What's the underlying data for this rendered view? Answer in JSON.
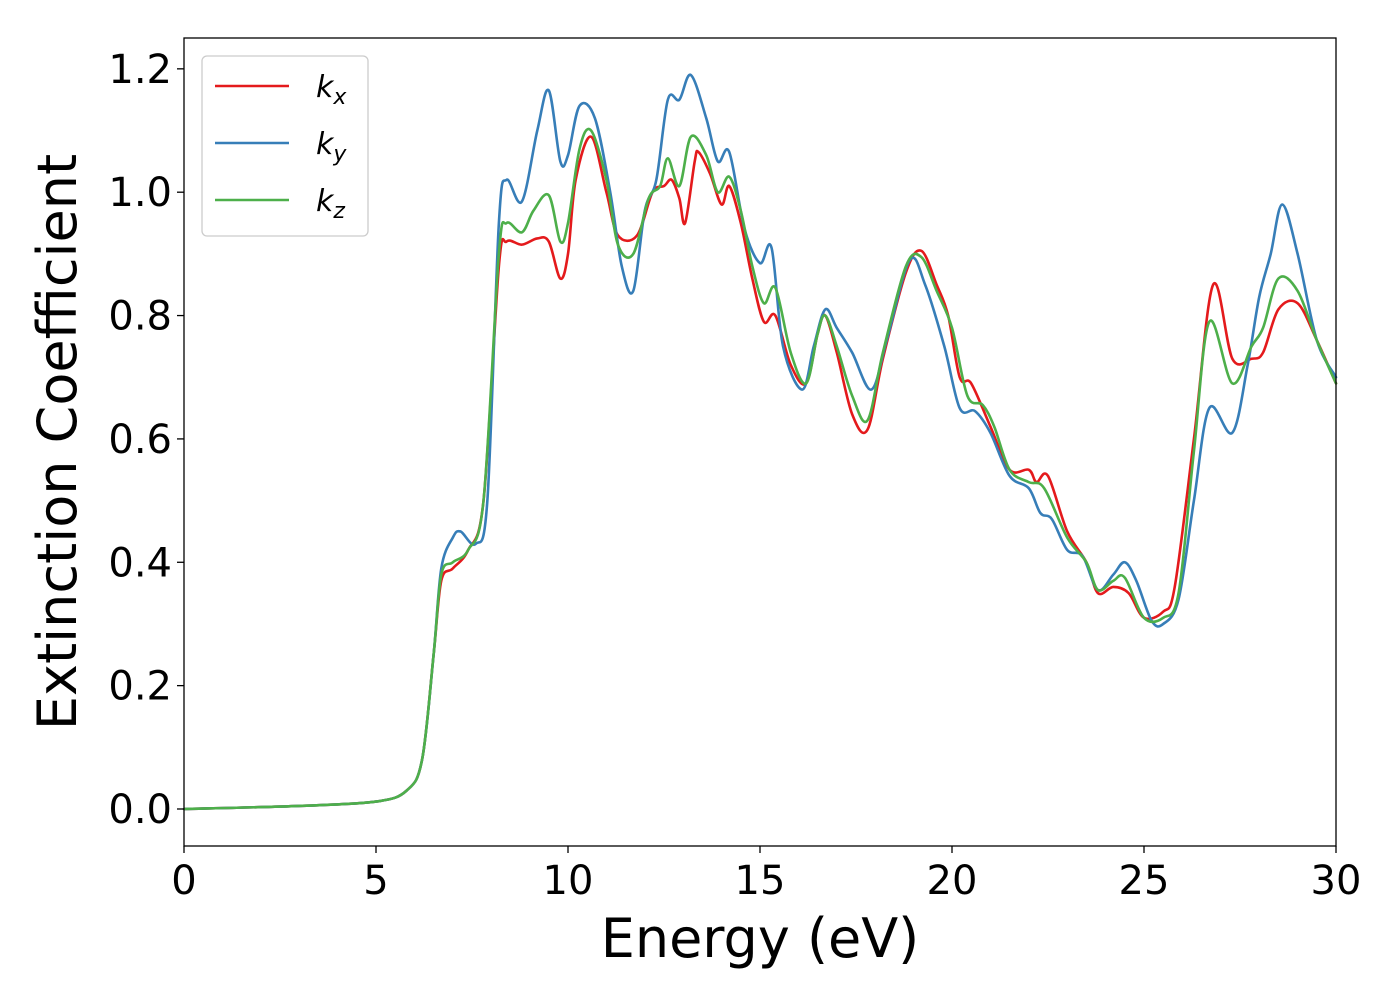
{
  "chart_data": {
    "type": "line",
    "xlabel": "Energy (eV)",
    "ylabel": "Extinction Coefficient",
    "xlim": [
      0,
      30
    ],
    "ylim": [
      -0.06,
      1.25
    ],
    "x_ticks": [
      {
        "value": 0,
        "label": "0"
      },
      {
        "value": 5,
        "label": "5"
      },
      {
        "value": 10,
        "label": "10"
      },
      {
        "value": 15,
        "label": "15"
      },
      {
        "value": 20,
        "label": "20"
      },
      {
        "value": 25,
        "label": "25"
      },
      {
        "value": 30,
        "label": "30"
      }
    ],
    "y_ticks": [
      {
        "value": 0.0,
        "label": "0.0"
      },
      {
        "value": 0.2,
        "label": "0.2"
      },
      {
        "value": 0.4,
        "label": "0.4"
      },
      {
        "value": 0.6,
        "label": "0.6"
      },
      {
        "value": 0.8,
        "label": "0.8"
      },
      {
        "value": 1.0,
        "label": "1.0"
      },
      {
        "value": 1.2,
        "label": "1.2"
      }
    ],
    "grid": false,
    "legend_position": "top-left",
    "series": [
      {
        "name": "k",
        "subscript": "x",
        "color": "#e41a1c",
        "points": [
          [
            0,
            0.0
          ],
          [
            3,
            0.005
          ],
          [
            5,
            0.012
          ],
          [
            5.8,
            0.03
          ],
          [
            6.2,
            0.08
          ],
          [
            6.5,
            0.25
          ],
          [
            6.7,
            0.37
          ],
          [
            7.0,
            0.39
          ],
          [
            7.4,
            0.42
          ],
          [
            7.8,
            0.5
          ],
          [
            8.2,
            0.88
          ],
          [
            8.4,
            0.92
          ],
          [
            8.8,
            0.915
          ],
          [
            9.2,
            0.925
          ],
          [
            9.5,
            0.92
          ],
          [
            9.8,
            0.86
          ],
          [
            10.0,
            0.9
          ],
          [
            10.2,
            1.02
          ],
          [
            10.6,
            1.09
          ],
          [
            11.0,
            1.0
          ],
          [
            11.3,
            0.93
          ],
          [
            11.8,
            0.93
          ],
          [
            12.2,
            1.0
          ],
          [
            12.5,
            1.01
          ],
          [
            12.7,
            1.02
          ],
          [
            12.9,
            0.99
          ],
          [
            13.05,
            0.95
          ],
          [
            13.3,
            1.05
          ],
          [
            13.4,
            1.065
          ],
          [
            13.7,
            1.03
          ],
          [
            14.0,
            0.98
          ],
          [
            14.2,
            1.01
          ],
          [
            14.5,
            0.95
          ],
          [
            14.8,
            0.86
          ],
          [
            15.1,
            0.79
          ],
          [
            15.4,
            0.8
          ],
          [
            15.8,
            0.72
          ],
          [
            16.2,
            0.69
          ],
          [
            16.5,
            0.77
          ],
          [
            16.7,
            0.8
          ],
          [
            17.0,
            0.74
          ],
          [
            17.4,
            0.64
          ],
          [
            17.8,
            0.615
          ],
          [
            18.2,
            0.73
          ],
          [
            18.8,
            0.87
          ],
          [
            19.2,
            0.905
          ],
          [
            19.6,
            0.85
          ],
          [
            19.9,
            0.8
          ],
          [
            20.2,
            0.7
          ],
          [
            20.5,
            0.69
          ],
          [
            21.0,
            0.62
          ],
          [
            21.5,
            0.55
          ],
          [
            22.0,
            0.55
          ],
          [
            22.2,
            0.53
          ],
          [
            22.5,
            0.54
          ],
          [
            23.0,
            0.45
          ],
          [
            23.5,
            0.4
          ],
          [
            23.8,
            0.35
          ],
          [
            24.2,
            0.36
          ],
          [
            24.6,
            0.35
          ],
          [
            25.0,
            0.31
          ],
          [
            25.5,
            0.32
          ],
          [
            25.8,
            0.36
          ],
          [
            26.3,
            0.6
          ],
          [
            26.8,
            0.85
          ],
          [
            27.3,
            0.73
          ],
          [
            27.8,
            0.73
          ],
          [
            28.1,
            0.74
          ],
          [
            28.5,
            0.81
          ],
          [
            29.0,
            0.82
          ],
          [
            29.5,
            0.76
          ],
          [
            30.0,
            0.69
          ]
        ]
      },
      {
        "name": "k",
        "subscript": "y",
        "color": "#377eb8",
        "points": [
          [
            0,
            0.0
          ],
          [
            3,
            0.005
          ],
          [
            5,
            0.012
          ],
          [
            5.8,
            0.03
          ],
          [
            6.2,
            0.08
          ],
          [
            6.5,
            0.25
          ],
          [
            6.7,
            0.39
          ],
          [
            7.0,
            0.44
          ],
          [
            7.2,
            0.45
          ],
          [
            7.6,
            0.43
          ],
          [
            7.9,
            0.5
          ],
          [
            8.2,
            0.95
          ],
          [
            8.4,
            1.02
          ],
          [
            8.8,
            0.985
          ],
          [
            9.2,
            1.1
          ],
          [
            9.5,
            1.165
          ],
          [
            9.8,
            1.05
          ],
          [
            10.0,
            1.06
          ],
          [
            10.3,
            1.14
          ],
          [
            10.7,
            1.12
          ],
          [
            11.1,
            1.0
          ],
          [
            11.4,
            0.88
          ],
          [
            11.7,
            0.84
          ],
          [
            12.0,
            0.97
          ],
          [
            12.3,
            1.02
          ],
          [
            12.6,
            1.15
          ],
          [
            12.9,
            1.15
          ],
          [
            13.2,
            1.19
          ],
          [
            13.6,
            1.12
          ],
          [
            13.9,
            1.05
          ],
          [
            14.2,
            1.065
          ],
          [
            14.6,
            0.94
          ],
          [
            15.0,
            0.885
          ],
          [
            15.3,
            0.91
          ],
          [
            15.6,
            0.75
          ],
          [
            16.1,
            0.68
          ],
          [
            16.4,
            0.75
          ],
          [
            16.7,
            0.81
          ],
          [
            17.0,
            0.78
          ],
          [
            17.4,
            0.74
          ],
          [
            17.9,
            0.68
          ],
          [
            18.3,
            0.76
          ],
          [
            18.9,
            0.89
          ],
          [
            19.3,
            0.85
          ],
          [
            19.8,
            0.75
          ],
          [
            20.2,
            0.65
          ],
          [
            20.6,
            0.645
          ],
          [
            21.0,
            0.61
          ],
          [
            21.5,
            0.54
          ],
          [
            22.0,
            0.52
          ],
          [
            22.3,
            0.48
          ],
          [
            22.6,
            0.47
          ],
          [
            23.0,
            0.42
          ],
          [
            23.4,
            0.41
          ],
          [
            23.8,
            0.355
          ],
          [
            24.2,
            0.38
          ],
          [
            24.5,
            0.4
          ],
          [
            24.8,
            0.37
          ],
          [
            25.2,
            0.305
          ],
          [
            25.5,
            0.3
          ],
          [
            25.9,
            0.34
          ],
          [
            26.3,
            0.5
          ],
          [
            26.7,
            0.65
          ],
          [
            27.3,
            0.61
          ],
          [
            27.7,
            0.72
          ],
          [
            28.0,
            0.83
          ],
          [
            28.3,
            0.9
          ],
          [
            28.6,
            0.98
          ],
          [
            29.0,
            0.9
          ],
          [
            29.5,
            0.76
          ],
          [
            30.0,
            0.7
          ]
        ]
      },
      {
        "name": "k",
        "subscript": "z",
        "color": "#4daf4a",
        "points": [
          [
            0,
            0.0
          ],
          [
            3,
            0.005
          ],
          [
            5,
            0.012
          ],
          [
            5.8,
            0.03
          ],
          [
            6.2,
            0.08
          ],
          [
            6.5,
            0.25
          ],
          [
            6.7,
            0.38
          ],
          [
            7.0,
            0.4
          ],
          [
            7.4,
            0.42
          ],
          [
            7.8,
            0.5
          ],
          [
            8.2,
            0.9
          ],
          [
            8.4,
            0.95
          ],
          [
            8.8,
            0.935
          ],
          [
            9.1,
            0.97
          ],
          [
            9.5,
            0.995
          ],
          [
            9.8,
            0.92
          ],
          [
            10.0,
            0.95
          ],
          [
            10.3,
            1.07
          ],
          [
            10.6,
            1.1
          ],
          [
            11.0,
            1.02
          ],
          [
            11.3,
            0.915
          ],
          [
            11.7,
            0.9
          ],
          [
            12.1,
            0.99
          ],
          [
            12.4,
            1.01
          ],
          [
            12.6,
            1.055
          ],
          [
            12.9,
            1.01
          ],
          [
            13.2,
            1.09
          ],
          [
            13.6,
            1.06
          ],
          [
            13.9,
            1.0
          ],
          [
            14.2,
            1.025
          ],
          [
            14.5,
            0.97
          ],
          [
            14.8,
            0.88
          ],
          [
            15.1,
            0.82
          ],
          [
            15.4,
            0.845
          ],
          [
            15.8,
            0.74
          ],
          [
            16.2,
            0.69
          ],
          [
            16.5,
            0.77
          ],
          [
            16.7,
            0.8
          ],
          [
            17.0,
            0.75
          ],
          [
            17.4,
            0.67
          ],
          [
            17.8,
            0.63
          ],
          [
            18.2,
            0.74
          ],
          [
            18.8,
            0.88
          ],
          [
            19.2,
            0.895
          ],
          [
            19.6,
            0.84
          ],
          [
            20.0,
            0.78
          ],
          [
            20.4,
            0.67
          ],
          [
            20.8,
            0.655
          ],
          [
            21.1,
            0.62
          ],
          [
            21.5,
            0.55
          ],
          [
            22.0,
            0.53
          ],
          [
            22.4,
            0.52
          ],
          [
            23.0,
            0.44
          ],
          [
            23.5,
            0.4
          ],
          [
            23.8,
            0.355
          ],
          [
            24.2,
            0.37
          ],
          [
            24.5,
            0.375
          ],
          [
            25.0,
            0.31
          ],
          [
            25.5,
            0.31
          ],
          [
            25.9,
            0.35
          ],
          [
            26.3,
            0.58
          ],
          [
            26.7,
            0.79
          ],
          [
            27.3,
            0.69
          ],
          [
            27.8,
            0.75
          ],
          [
            28.1,
            0.78
          ],
          [
            28.5,
            0.86
          ],
          [
            29.0,
            0.84
          ],
          [
            29.5,
            0.76
          ],
          [
            30.0,
            0.69
          ]
        ]
      }
    ]
  }
}
